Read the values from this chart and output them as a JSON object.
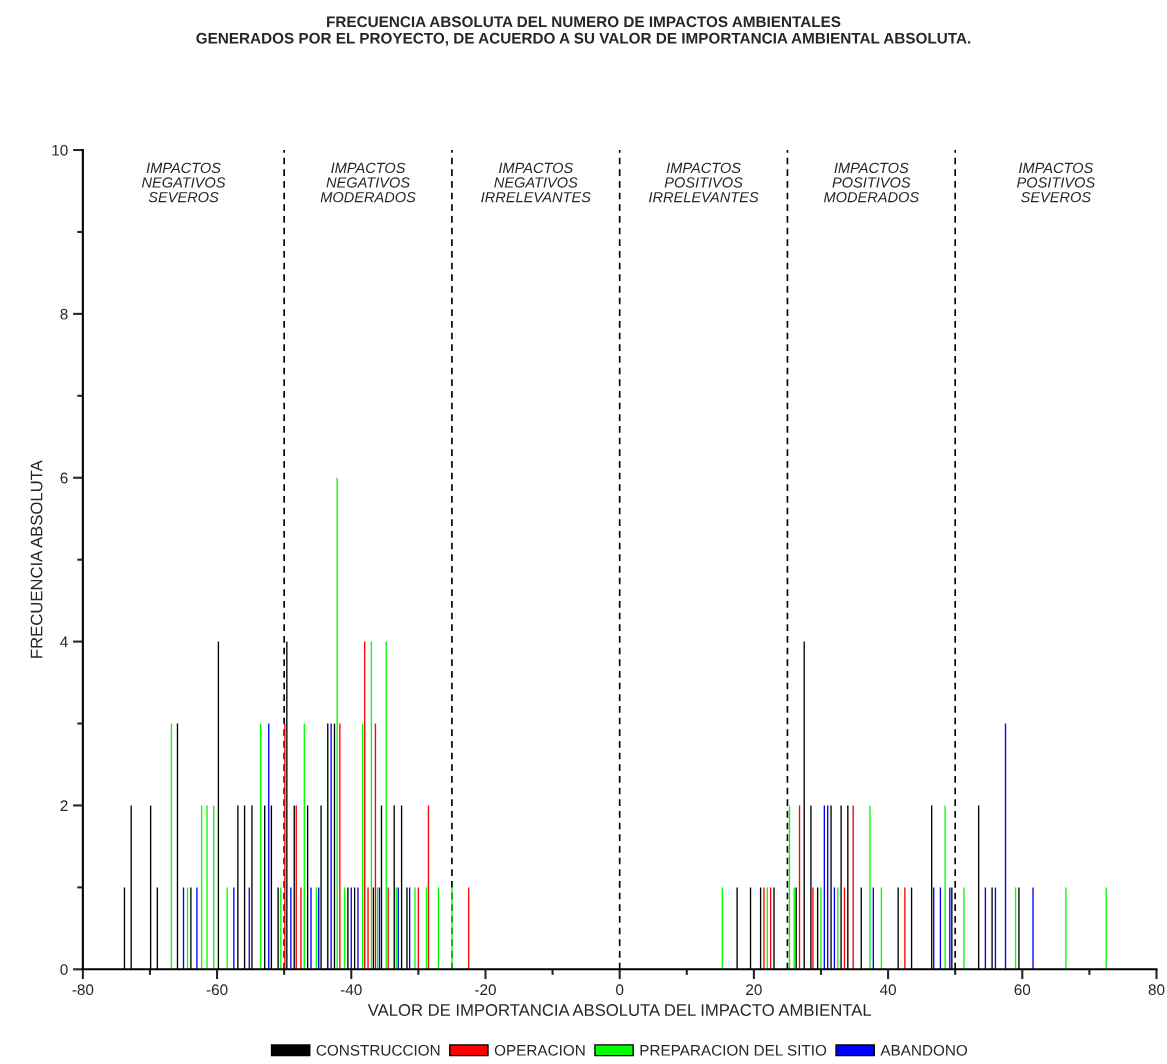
{
  "chart_data": {
    "type": "bar",
    "title": "FRECUENCIA ABSOLUTA DEL NUMERO DE IMPACTOS AMBIENTALES\nGENERADOS POR EL PROYECTO, DE ACUERDO A SU VALOR DE IMPORTANCIA AMBIENTAL ABSOLUTA.",
    "xlabel": "VALOR DE IMPORTANCIA ABSOLUTA DEL IMPACTO AMBIENTAL",
    "ylabel": "FRECUENCIA ABSOLUTA",
    "xlim": [
      -80,
      80
    ],
    "xticks": [
      -80,
      -60,
      -40,
      -20,
      0,
      20,
      40,
      60,
      80
    ],
    "ylim": [
      0,
      10
    ],
    "yticks": [
      0,
      2,
      4,
      6,
      8,
      10
    ],
    "grid": false,
    "legend": "bottom",
    "series": [
      {
        "name": "CONSTRUCCION",
        "color": "#000000",
        "x": [
          -73.8,
          -72.8,
          -69.9,
          -68.9,
          -65.9,
          -63.9,
          -59.8,
          -56.9,
          -55.9,
          -54.8,
          -52.9,
          -51.9,
          -50.9,
          -49.6,
          -48.5,
          -46.5,
          -44.5,
          -43.5,
          -42.5,
          -40.5,
          -39.5,
          -36.7,
          -35.5,
          -33.6,
          -32.5,
          -31.7,
          17.5,
          19.5,
          21,
          23,
          26.3,
          27.5,
          28.5,
          29.5,
          31.5,
          33.0,
          34.0,
          36,
          41.5,
          43.5,
          46.5,
          49.5,
          53.5,
          55.5,
          59.5
        ],
        "values": [
          1,
          2,
          2,
          1,
          3,
          1,
          4,
          2,
          2,
          2,
          2,
          2,
          1,
          4,
          2,
          2,
          2,
          3,
          3,
          1,
          1,
          1,
          2,
          2,
          2,
          1,
          1,
          1,
          1,
          1,
          1,
          4,
          2,
          1,
          2,
          2,
          2,
          1,
          1,
          1,
          2,
          1,
          2,
          1,
          1
        ]
      },
      {
        "name": "OPERACION",
        "color": "#ff0000",
        "x": [
          -49.9,
          -48.2,
          -47.5,
          -41.7,
          -38,
          -37.5,
          -36.4,
          -34.5,
          -30,
          -28.5,
          -22.5,
          21.5,
          22.5,
          26.8,
          28.8,
          33.5,
          34.8,
          42.5
        ],
        "values": [
          3,
          2,
          1,
          3,
          4,
          1,
          3,
          1,
          1,
          2,
          1,
          1,
          1,
          2,
          1,
          1,
          2,
          1
        ]
      },
      {
        "name": "PREPARACION DEL SITIO",
        "color": "#00ff00",
        "x": [
          -66.8,
          -64.4,
          -62.3,
          -61.5,
          -60.5,
          -58.5,
          -53.5,
          -50.5,
          -47,
          -45.2,
          -42.1,
          -41,
          -38.3,
          -37,
          -36.1,
          -34.8,
          -33.3,
          -30.5,
          -28.8,
          -27,
          -25,
          15.3,
          22,
          25.3,
          26,
          30,
          32.5,
          37.3,
          39,
          48.5,
          51.3,
          59,
          66.5,
          72.5
        ],
        "values": [
          3,
          1,
          2,
          2,
          2,
          1,
          3,
          1,
          3,
          1,
          6,
          1,
          3,
          4,
          1,
          4,
          1,
          1,
          1,
          1,
          1,
          1,
          1,
          2,
          1,
          1,
          1,
          2,
          1,
          2,
          1,
          1,
          1,
          1
        ]
      },
      {
        "name": "ABANDONO",
        "color": "#0000ff",
        "x": [
          -65.0,
          -63,
          -57.5,
          -55.2,
          -52.3,
          -49,
          -46,
          -44.85,
          -43,
          -40,
          -39,
          -35.8,
          -33,
          -31.3,
          30.5,
          31.0,
          32.0,
          37.8,
          46.8,
          47.8,
          49.2,
          54.5,
          56,
          57.5,
          61.6
        ],
        "values": [
          1,
          1,
          1,
          1,
          3,
          1,
          1,
          1,
          3,
          1,
          1,
          1,
          1,
          1,
          2,
          2,
          1,
          1,
          1,
          1,
          1,
          1,
          1,
          3,
          1
        ]
      }
    ],
    "ref_lines": [
      {
        "axis": "x",
        "value": -50,
        "color": "#000000",
        "line_style": "dashed"
      },
      {
        "axis": "x",
        "value": -25,
        "color": "#000000",
        "line_style": "dashed"
      },
      {
        "axis": "x",
        "value": 0,
        "color": "#000000",
        "line_style": "dashed"
      },
      {
        "axis": "x",
        "value": 25,
        "color": "#000000",
        "line_style": "dashed"
      },
      {
        "axis": "x",
        "value": 50,
        "color": "#000000",
        "line_style": "dashed"
      }
    ],
    "annotations": [
      "IMPACTOS\nNEGATIVOS\nSEVEROS",
      "IMPACTOS\nNEGATIVOS\nMODERADOS",
      "IMPACTOS\nNEGATIVOS\nIRRELEVANTES",
      "IMPACTOS\nPOSITIVOS\nIRRELEVANTES",
      "IMPACTOS\nPOSITIVOS\nMODERADOS",
      "IMPACTOS\nPOSITIVOS\nSEVEROS"
    ]
  }
}
